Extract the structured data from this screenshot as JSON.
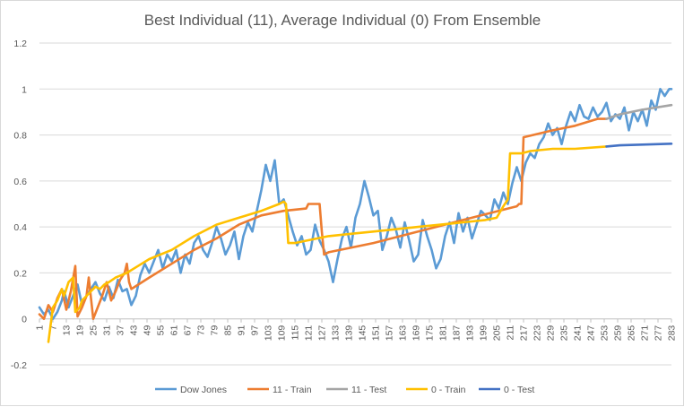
{
  "chart_data": {
    "type": "line",
    "title": "Best Individual (11), Average Individual (0) From Ensemble",
    "xlabel": "",
    "ylabel": "",
    "ylim": [
      -0.2,
      1.2
    ],
    "y_ticks": [
      -0.2,
      0,
      0.2,
      0.4,
      0.6,
      0.8,
      1,
      1.2
    ],
    "x_range": [
      1,
      283
    ],
    "x_tick_labels": [
      "1",
      "7",
      "13",
      "19",
      "25",
      "31",
      "37",
      "43",
      "49",
      "55",
      "61",
      "67",
      "73",
      "79",
      "85",
      "91",
      "97",
      "103",
      "109",
      "115",
      "121",
      "127",
      "133",
      "139",
      "145",
      "151",
      "157",
      "163",
      "169",
      "175",
      "181",
      "187",
      "193",
      "199",
      "205",
      "211",
      "217",
      "223",
      "229",
      "235",
      "241",
      "247",
      "253",
      "259",
      "265",
      "271",
      "277",
      "283"
    ],
    "grid": "horizontal",
    "legend_position": "bottom",
    "series": [
      {
        "name": "Dow Jones",
        "color": "#5b9bd5",
        "x": [
          1,
          3,
          5,
          7,
          9,
          11,
          12,
          14,
          16,
          18,
          20,
          22,
          24,
          26,
          28,
          30,
          32,
          34,
          36,
          38,
          40,
          42,
          44,
          46,
          48,
          50,
          52,
          54,
          56,
          58,
          60,
          62,
          64,
          66,
          68,
          70,
          72,
          74,
          76,
          78,
          80,
          82,
          84,
          86,
          88,
          90,
          92,
          94,
          96,
          98,
          100,
          102,
          104,
          106,
          108,
          110,
          112,
          114,
          116,
          118,
          120,
          122,
          124,
          126,
          128,
          130,
          132,
          134,
          136,
          138,
          140,
          142,
          144,
          146,
          148,
          150,
          152,
          154,
          156,
          158,
          160,
          162,
          164,
          166,
          168,
          170,
          172,
          174,
          176,
          178,
          180,
          182,
          184,
          186,
          188,
          190,
          192,
          194,
          196,
          198,
          200,
          202,
          204,
          206,
          208,
          210,
          212,
          214,
          216,
          218,
          220,
          222,
          224,
          226,
          228,
          230,
          232,
          234,
          236,
          238,
          240,
          242,
          244,
          246,
          248,
          250,
          252,
          254,
          256,
          258,
          260,
          262,
          264,
          266,
          268,
          270,
          272,
          274,
          276,
          278,
          280,
          282,
          283
        ],
        "y": [
          0.05,
          0.02,
          0.04,
          0.0,
          0.03,
          0.08,
          0.12,
          0.05,
          0.1,
          0.15,
          0.06,
          0.1,
          0.13,
          0.16,
          0.11,
          0.08,
          0.14,
          0.09,
          0.17,
          0.12,
          0.13,
          0.06,
          0.1,
          0.19,
          0.24,
          0.2,
          0.25,
          0.3,
          0.22,
          0.28,
          0.25,
          0.3,
          0.2,
          0.28,
          0.24,
          0.33,
          0.36,
          0.3,
          0.27,
          0.33,
          0.4,
          0.35,
          0.28,
          0.32,
          0.38,
          0.26,
          0.36,
          0.42,
          0.38,
          0.47,
          0.56,
          0.67,
          0.6,
          0.69,
          0.5,
          0.52,
          0.45,
          0.38,
          0.32,
          0.36,
          0.28,
          0.3,
          0.41,
          0.34,
          0.3,
          0.25,
          0.16,
          0.26,
          0.35,
          0.4,
          0.31,
          0.44,
          0.5,
          0.6,
          0.53,
          0.45,
          0.47,
          0.3,
          0.36,
          0.44,
          0.39,
          0.31,
          0.42,
          0.34,
          0.25,
          0.28,
          0.43,
          0.36,
          0.3,
          0.22,
          0.26,
          0.36,
          0.42,
          0.33,
          0.46,
          0.38,
          0.44,
          0.35,
          0.41,
          0.47,
          0.45,
          0.43,
          0.52,
          0.48,
          0.55,
          0.5,
          0.59,
          0.66,
          0.6,
          0.68,
          0.72,
          0.7,
          0.76,
          0.79,
          0.85,
          0.8,
          0.83,
          0.76,
          0.84,
          0.9,
          0.86,
          0.93,
          0.88,
          0.87,
          0.92,
          0.88,
          0.9,
          0.94,
          0.86,
          0.89,
          0.87,
          0.92,
          0.82,
          0.9,
          0.86,
          0.91,
          0.84,
          0.95,
          0.91,
          1.0,
          0.97,
          1.0,
          1.0
        ]
      },
      {
        "name": "11 - Train",
        "color": "#ed7d31",
        "x": [
          1,
          3,
          5,
          7,
          9,
          11,
          13,
          15,
          17,
          18,
          20,
          22,
          23,
          25,
          27,
          29,
          31,
          33,
          35,
          37,
          39,
          40,
          41,
          42,
          50,
          60,
          70,
          80,
          90,
          100,
          110,
          120,
          121,
          126,
          127,
          128,
          130,
          150,
          170,
          190,
          210,
          214,
          215,
          216,
          217,
          230,
          240,
          250,
          254
        ],
        "y": [
          0.02,
          0.0,
          0.06,
          0.03,
          0.09,
          0.13,
          0.04,
          0.12,
          0.23,
          0.01,
          0.05,
          0.1,
          0.18,
          0.0,
          0.05,
          0.1,
          0.16,
          0.08,
          0.12,
          0.17,
          0.2,
          0.24,
          0.16,
          0.13,
          0.18,
          0.24,
          0.3,
          0.35,
          0.41,
          0.45,
          0.47,
          0.48,
          0.5,
          0.5,
          0.38,
          0.28,
          0.29,
          0.33,
          0.38,
          0.43,
          0.48,
          0.49,
          0.5,
          0.5,
          0.79,
          0.82,
          0.84,
          0.87,
          0.87
        ]
      },
      {
        "name": "11 - Test",
        "color": "#a5a5a5",
        "x": [
          254,
          260,
          270,
          283
        ],
        "y": [
          0.87,
          0.89,
          0.91,
          0.93
        ]
      },
      {
        "name": "0 - Train",
        "color": "#ffc000",
        "x": [
          5,
          7,
          9,
          11,
          12,
          14,
          16,
          17,
          18,
          19,
          20,
          22,
          24,
          26,
          28,
          30,
          32,
          35,
          40,
          45,
          50,
          60,
          70,
          80,
          90,
          100,
          108,
          110,
          111,
          112,
          115,
          120,
          130,
          140,
          150,
          160,
          170,
          180,
          190,
          200,
          205,
          208,
          210,
          211,
          212,
          216,
          220,
          230,
          240,
          254
        ],
        "y": [
          -0.1,
          0.05,
          0.08,
          0.13,
          0.1,
          0.16,
          0.18,
          0.03,
          0.04,
          0.05,
          0.08,
          0.1,
          0.12,
          0.14,
          0.13,
          0.15,
          0.16,
          0.18,
          0.2,
          0.23,
          0.26,
          0.3,
          0.36,
          0.41,
          0.44,
          0.47,
          0.5,
          0.51,
          0.5,
          0.33,
          0.33,
          0.34,
          0.36,
          0.37,
          0.38,
          0.39,
          0.4,
          0.41,
          0.42,
          0.43,
          0.44,
          0.49,
          0.52,
          0.72,
          0.72,
          0.72,
          0.73,
          0.74,
          0.74,
          0.75
        ]
      },
      {
        "name": "0 - Test",
        "color": "#4472c4",
        "x": [
          254,
          260,
          270,
          283
        ],
        "y": [
          0.75,
          0.755,
          0.758,
          0.762
        ]
      }
    ]
  }
}
